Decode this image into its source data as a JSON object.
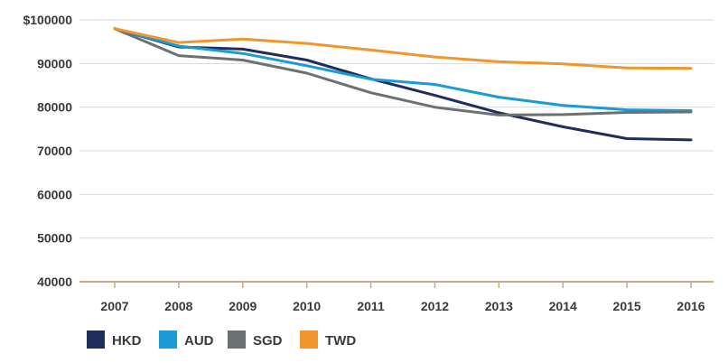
{
  "chart_data": {
    "type": "line",
    "title": "",
    "xlabel": "",
    "ylabel": "",
    "x": [
      "2007",
      "2008",
      "2009",
      "2010",
      "2011",
      "2012",
      "2013",
      "2014",
      "2015",
      "2016"
    ],
    "y_ticks": [
      "$100000",
      "90000",
      "80000",
      "70000",
      "60000",
      "50000",
      "40000"
    ],
    "ylim": [
      40000,
      100000
    ],
    "grid": true,
    "legend_position": "bottom-left",
    "series": [
      {
        "name": "HKD",
        "color": "#1f2d5c",
        "values": [
          98000,
          93800,
          93300,
          90800,
          86500,
          82700,
          78700,
          75500,
          72800,
          72500
        ]
      },
      {
        "name": "AUD",
        "color": "#1a9bd5",
        "values": [
          98000,
          94000,
          92300,
          89500,
          86400,
          85200,
          82300,
          80400,
          79400,
          79200
        ]
      },
      {
        "name": "SGD",
        "color": "#6b7173",
        "values": [
          98000,
          91800,
          90800,
          87800,
          83300,
          80000,
          78200,
          78300,
          78800,
          78900
        ]
      },
      {
        "name": "TWD",
        "color": "#f0962c",
        "values": [
          98000,
          94800,
          95600,
          94600,
          93100,
          91500,
          90400,
          89900,
          89000,
          88900
        ]
      }
    ]
  }
}
